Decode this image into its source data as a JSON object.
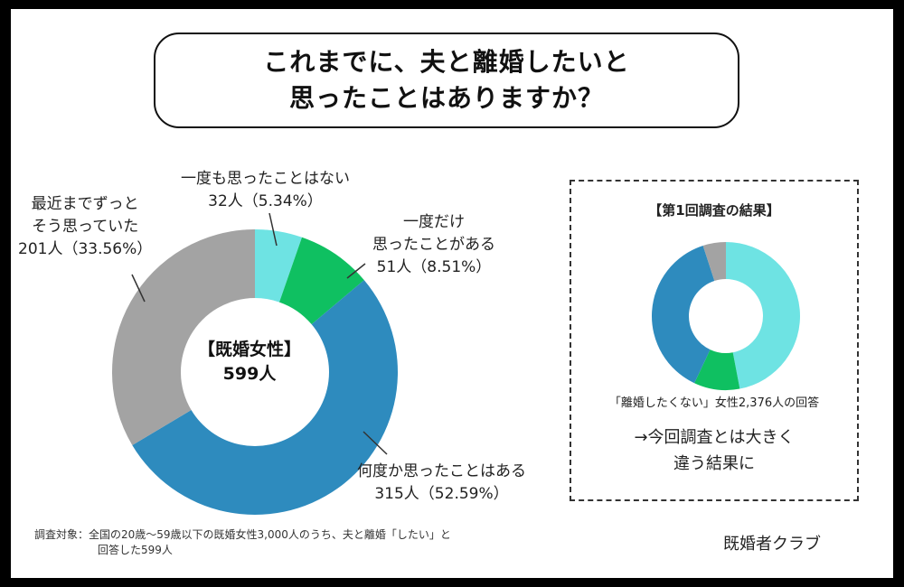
{
  "title": {
    "line1": "これまでに、夫と離婚したいと",
    "line2": "思ったことはありますか？"
  },
  "center": {
    "group": "【既婚女性】",
    "total": "599人"
  },
  "chart_data": [
    {
      "type": "pie",
      "title": "これまでに、夫と離婚したいと思ったことはありますか？",
      "slices": [
        {
          "label": "一度も思ったことはない",
          "count": "32人",
          "percent_text": "（5.34%）",
          "value": 5.34,
          "color": "#6EE3E3"
        },
        {
          "label": "一度だけ思ったことがある",
          "count": "51人",
          "percent_text": "（8.51%）",
          "value": 8.51,
          "color": "#0FC061"
        },
        {
          "label": "何度か思ったことはある",
          "count": "315人",
          "percent_text": "（52.59%）",
          "value": 52.59,
          "color": "#2E8BBE"
        },
        {
          "label": "最近までずっとそう思っていた",
          "count": "201人",
          "percent_text": "（33.56%）",
          "value": 33.56,
          "color": "#A3A3A3"
        }
      ]
    },
    {
      "type": "pie",
      "title": "【第1回調査の結果】",
      "slices": [
        {
          "value": 47,
          "color": "#6EE3E3"
        },
        {
          "value": 10,
          "color": "#0FC061"
        },
        {
          "value": 38,
          "color": "#2E8BBE"
        },
        {
          "value": 5,
          "color": "#A3A3A3"
        }
      ]
    }
  ],
  "labels": {
    "never": {
      "line1": "一度も思ったことはない",
      "line2": "32人（5.34%）"
    },
    "once": {
      "line1": "一度だけ",
      "line2": "思ったことがある",
      "line3": "51人（8.51%）"
    },
    "several": {
      "line1": "何度か思ったことはある",
      "line2": "315人（52.59%）"
    },
    "always": {
      "line1": "最近までずっと",
      "line2": "そう思っていた",
      "line3": "201人（33.56%）"
    }
  },
  "side_panel": {
    "title": "【第1回調査の結果】",
    "caption": "「離婚したくない」女性2,376人の回答",
    "note_line1": "→今回調査とは大きく",
    "note_line2": "違う結果に"
  },
  "footnote": {
    "line1": "調査対象：全国の20歳〜59歳以下の既婚女性3,000人のうち、夫と離婚「したい」と",
    "line2": "回答した599人"
  },
  "brand": "既婚者クラブ"
}
